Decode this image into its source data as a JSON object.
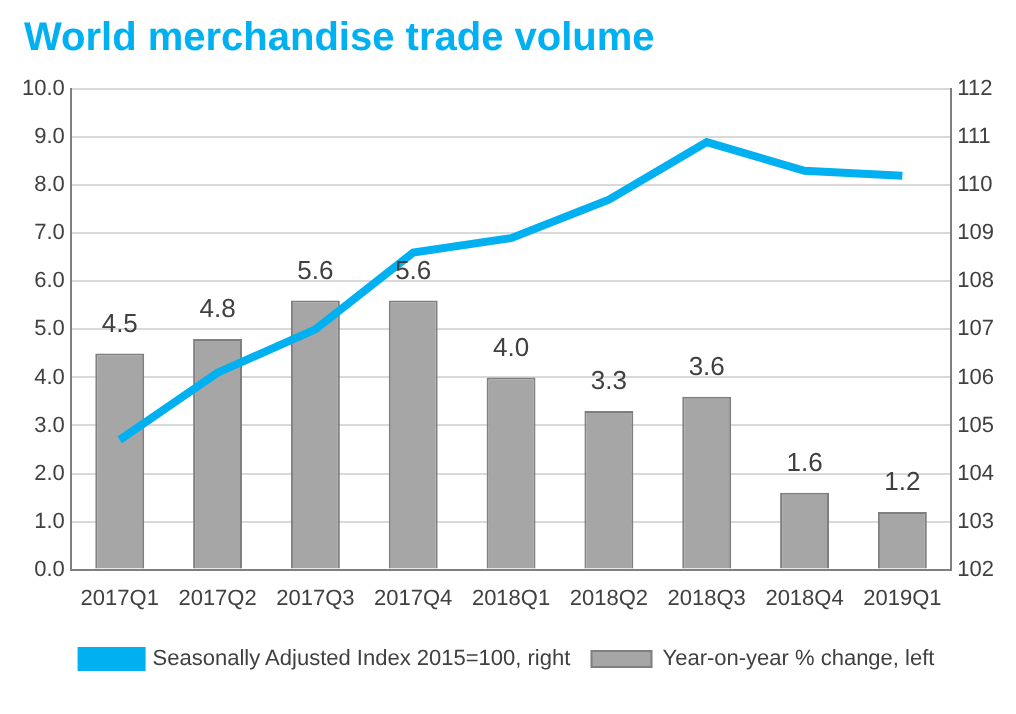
{
  "chart_data": {
    "type": "bar",
    "title": "World merchandise trade volume",
    "categories": [
      "2017Q1",
      "2017Q2",
      "2017Q3",
      "2017Q4",
      "2018Q1",
      "2018Q2",
      "2018Q3",
      "2018Q4",
      "2019Q1"
    ],
    "series": [
      {
        "name": "Year-on-year % change, left",
        "color": "#a6a6a6",
        "values": [
          4.5,
          4.8,
          5.6,
          5.6,
          4.0,
          3.3,
          3.6,
          1.6,
          1.2
        ]
      },
      {
        "name": "Seasonally Adjusted Index 2015=100, right",
        "type": "line",
        "axis": "y2",
        "color": "#00b0f0",
        "values": [
          104.7,
          106.1,
          107.0,
          108.6,
          108.9,
          109.7,
          110.9,
          110.3,
          110.2
        ]
      }
    ],
    "ylim": [
      0,
      10
    ],
    "yticks": [
      {
        "value": 0,
        "label": "0.0"
      },
      {
        "value": 1,
        "label": "1.0"
      },
      {
        "value": 2,
        "label": "2.0"
      },
      {
        "value": 3,
        "label": "3.0"
      },
      {
        "value": 4,
        "label": "4.0"
      },
      {
        "value": 5,
        "label": "5.0"
      },
      {
        "value": 6,
        "label": "6.0"
      },
      {
        "value": 7,
        "label": "7.0"
      },
      {
        "value": 8,
        "label": "8.0"
      },
      {
        "value": 9,
        "label": "9.0"
      },
      {
        "value": 10,
        "label": "10.0"
      }
    ],
    "y2lim": [
      102,
      112
    ],
    "y2ticks": [
      102,
      103,
      104,
      105,
      106,
      107,
      108,
      109,
      110,
      111,
      112
    ],
    "grid": "y",
    "legend": "bottom",
    "marker": "none",
    "value_labels": [
      "4.5",
      "4.8",
      "5.6",
      "5.6",
      "4.0",
      "3.3",
      "3.6",
      "1.6",
      "1.2"
    ]
  }
}
